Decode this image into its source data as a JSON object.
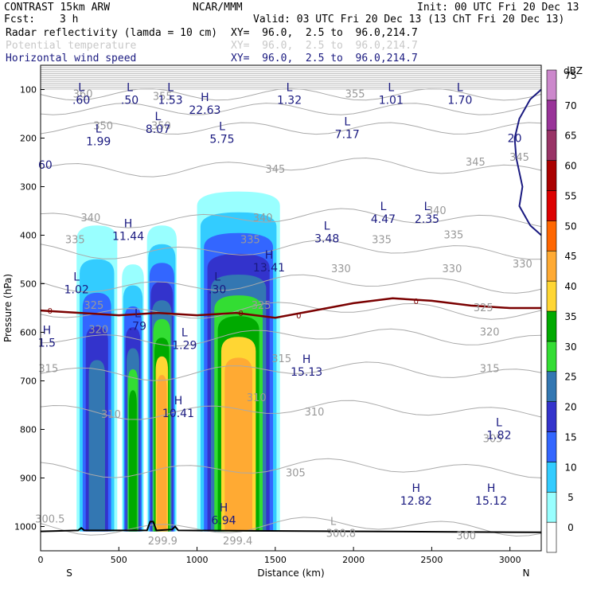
{
  "header": {
    "model": "CONTRAST 15km ARW",
    "org": "NCAR/MMM",
    "init": "Init: 00 UTC Fri 20 Dec 13",
    "fcst_label": "Fcst:",
    "fcst_value": "3 h",
    "valid": "Valid: 03 UTC Fri 20 Dec 13 (13 ChT Fri 20 Dec 13)",
    "fields": [
      {
        "name": "Radar reflectivity (lamda = 10 cm)",
        "xy": "XY=  96.0,  2.5 to  96.0,214.7",
        "color": "#000000"
      },
      {
        "name": "Potential temperature",
        "xy": "XY=  96.0,  2.5 to  96.0,214.7",
        "color": "#c8c8c8"
      },
      {
        "name": "Horizontal wind speed",
        "xy": "XY=  96.0,  2.5 to  96.0,214.7",
        "color": "#1a1a80"
      }
    ]
  },
  "colorbar": {
    "unit": "dBZ",
    "levels": [
      "0",
      "5",
      "10",
      "15",
      "20",
      "25",
      "30",
      "35",
      "40",
      "45",
      "50",
      "55",
      "60",
      "65",
      "70",
      "75"
    ],
    "colors": [
      "#ffffff",
      "#99ffff",
      "#33ccff",
      "#3366ff",
      "#3333cc",
      "#3377b2",
      "#33dd33",
      "#00aa00",
      "#ffd633",
      "#ffaa33",
      "#ff6600",
      "#dd0000",
      "#aa0000",
      "#993366",
      "#993399",
      "#cc88cc"
    ]
  },
  "chart_data": {
    "type": "cross-section",
    "xlabel": "Distance (km)",
    "ylabel": "Pressure (hPa)",
    "xlim": [
      0,
      3200
    ],
    "ylim": [
      1050,
      50
    ],
    "x_ticks": [
      "0",
      "500",
      "1000",
      "1500",
      "2000",
      "2500",
      "3000"
    ],
    "y_ticks": [
      "100",
      "200",
      "300",
      "400",
      "500",
      "600",
      "700",
      "800",
      "900",
      "1000"
    ],
    "x_end_labels": {
      "left": "S",
      "right": "N"
    },
    "reflectivity_cells": [
      {
        "x0": 230,
        "x1": 490,
        "top_hpa": 380,
        "peak_dbz": 20
      },
      {
        "x0": 520,
        "x1": 660,
        "top_hpa": 460,
        "peak_dbz": 30
      },
      {
        "x0": 680,
        "x1": 870,
        "top_hpa": 380,
        "peak_dbz": 40
      },
      {
        "x0": 1000,
        "x1": 1530,
        "top_hpa": 310,
        "peak_dbz": 40
      }
    ],
    "theta_contours": [
      "360",
      "355",
      "350",
      "345",
      "340",
      "335",
      "330",
      "325",
      "320",
      "315",
      "310",
      "305",
      "300"
    ],
    "theta_labels": [
      {
        "t": "360",
        "x": 270,
        "p": 110
      },
      {
        "t": "355",
        "x": 780,
        "p": 115
      },
      {
        "t": "355",
        "x": 2010,
        "p": 110
      },
      {
        "t": "350",
        "x": 400,
        "p": 175
      },
      {
        "t": "350",
        "x": 770,
        "p": 175
      },
      {
        "t": "345",
        "x": 1500,
        "p": 265
      },
      {
        "t": "345",
        "x": 2780,
        "p": 250
      },
      {
        "t": "345",
        "x": 3060,
        "p": 240
      },
      {
        "t": "340",
        "x": 320,
        "p": 365
      },
      {
        "t": "340",
        "x": 1420,
        "p": 365
      },
      {
        "t": "340",
        "x": 2530,
        "p": 350
      },
      {
        "t": "335",
        "x": 220,
        "p": 410
      },
      {
        "t": "335",
        "x": 1340,
        "p": 410
      },
      {
        "t": "335",
        "x": 2180,
        "p": 410
      },
      {
        "t": "335",
        "x": 2640,
        "p": 400
      },
      {
        "t": "330",
        "x": 1920,
        "p": 470
      },
      {
        "t": "330",
        "x": 2630,
        "p": 470
      },
      {
        "t": "330",
        "x": 3080,
        "p": 460
      },
      {
        "t": "325",
        "x": 340,
        "p": 545
      },
      {
        "t": "325",
        "x": 1410,
        "p": 545
      },
      {
        "t": "325",
        "x": 2830,
        "p": 550
      },
      {
        "t": "320",
        "x": 370,
        "p": 595
      },
      {
        "t": "320",
        "x": 2870,
        "p": 600
      },
      {
        "t": "315",
        "x": 50,
        "p": 675
      },
      {
        "t": "315",
        "x": 1540,
        "p": 655
      },
      {
        "t": "315",
        "x": 2870,
        "p": 675
      },
      {
        "t": "310",
        "x": 450,
        "p": 770
      },
      {
        "t": "310",
        "x": 1380,
        "p": 735
      },
      {
        "t": "310",
        "x": 1750,
        "p": 765
      },
      {
        "t": "305",
        "x": 2890,
        "p": 820
      },
      {
        "t": "305",
        "x": 1630,
        "p": 890
      },
      {
        "t": "300.5",
        "x": 60,
        "p": 985
      },
      {
        "t": "299.9",
        "x": 780,
        "p": 1030
      },
      {
        "t": "299.4",
        "x": 1260,
        "p": 1030
      },
      {
        "t": "300.8",
        "x": 1920,
        "p": 1015
      },
      {
        "t": "300",
        "x": 2720,
        "p": 1020
      },
      {
        "t": "L",
        "x": 1870,
        "p": 990
      }
    ],
    "freezing_level_label": "0",
    "freezing_level": [
      [
        0,
        555
      ],
      [
        250,
        560
      ],
      [
        500,
        565
      ],
      [
        750,
        560
      ],
      [
        1000,
        565
      ],
      [
        1250,
        560
      ],
      [
        1500,
        570
      ],
      [
        1750,
        555
      ],
      [
        2000,
        540
      ],
      [
        2250,
        530
      ],
      [
        2500,
        535
      ],
      [
        2750,
        545
      ],
      [
        3000,
        550
      ],
      [
        3200,
        550
      ]
    ],
    "wind_extrema": [
      {
        "type": "L",
        "value": ".60",
        "x": 260,
        "p": 110
      },
      {
        "type": "L",
        "value": ".50",
        "x": 570,
        "p": 110
      },
      {
        "type": "L",
        "value": "1.53",
        "x": 830,
        "p": 110
      },
      {
        "type": "H",
        "value": "22.63",
        "x": 1050,
        "p": 130
      },
      {
        "type": "L",
        "value": "1.32",
        "x": 1590,
        "p": 110
      },
      {
        "type": "L",
        "value": "1.01",
        "x": 2240,
        "p": 110
      },
      {
        "type": "L",
        "value": "1.70",
        "x": 2680,
        "p": 110
      },
      {
        "type": "L",
        "value": "8.07",
        "x": 750,
        "p": 170
      },
      {
        "type": "L",
        "value": "5.75",
        "x": 1160,
        "p": 190
      },
      {
        "type": "L",
        "value": "7.17",
        "x": 1960,
        "p": 180
      },
      {
        "type": "L",
        "value": "1.99",
        "x": 370,
        "p": 195
      },
      {
        "type": "H",
        "value": "11.44",
        "x": 560,
        "p": 390
      },
      {
        "type": "L",
        "value": "3.48",
        "x": 1830,
        "p": 395
      },
      {
        "type": "L",
        "value": "4.47",
        "x": 2190,
        "p": 355
      },
      {
        "type": "L",
        "value": "2.35",
        "x": 2470,
        "p": 355
      },
      {
        "type": "H",
        "value": "13.41",
        "x": 1460,
        "p": 455
      },
      {
        "type": "L",
        "value": "1.02",
        "x": 230,
        "p": 500
      },
      {
        "type": "L",
        "value": ".30",
        "x": 1130,
        "p": 500
      },
      {
        "type": "L",
        "value": ".79",
        "x": 620,
        "p": 575
      },
      {
        "type": "L",
        "value": "1.29",
        "x": 920,
        "p": 615
      },
      {
        "type": "H",
        "value": "1.5",
        "x": 40,
        "p": 610
      },
      {
        "type": "H",
        "value": "15.13",
        "x": 1700,
        "p": 670
      },
      {
        "type": "H",
        "value": "10.41",
        "x": 880,
        "p": 755
      },
      {
        "type": "L",
        "value": "1.82",
        "x": 2930,
        "p": 800
      },
      {
        "type": "H",
        "value": "12.82",
        "x": 2400,
        "p": 935
      },
      {
        "type": "H",
        "value": "15.12",
        "x": 2880,
        "p": 935
      },
      {
        "type": "H",
        "value": "6.94",
        "x": 1170,
        "p": 975
      }
    ],
    "edge_wind_labels": [
      {
        "value": "20",
        "x": 3030,
        "p": 200
      },
      {
        "value": "60",
        "x": 30,
        "p": 255
      }
    ]
  }
}
